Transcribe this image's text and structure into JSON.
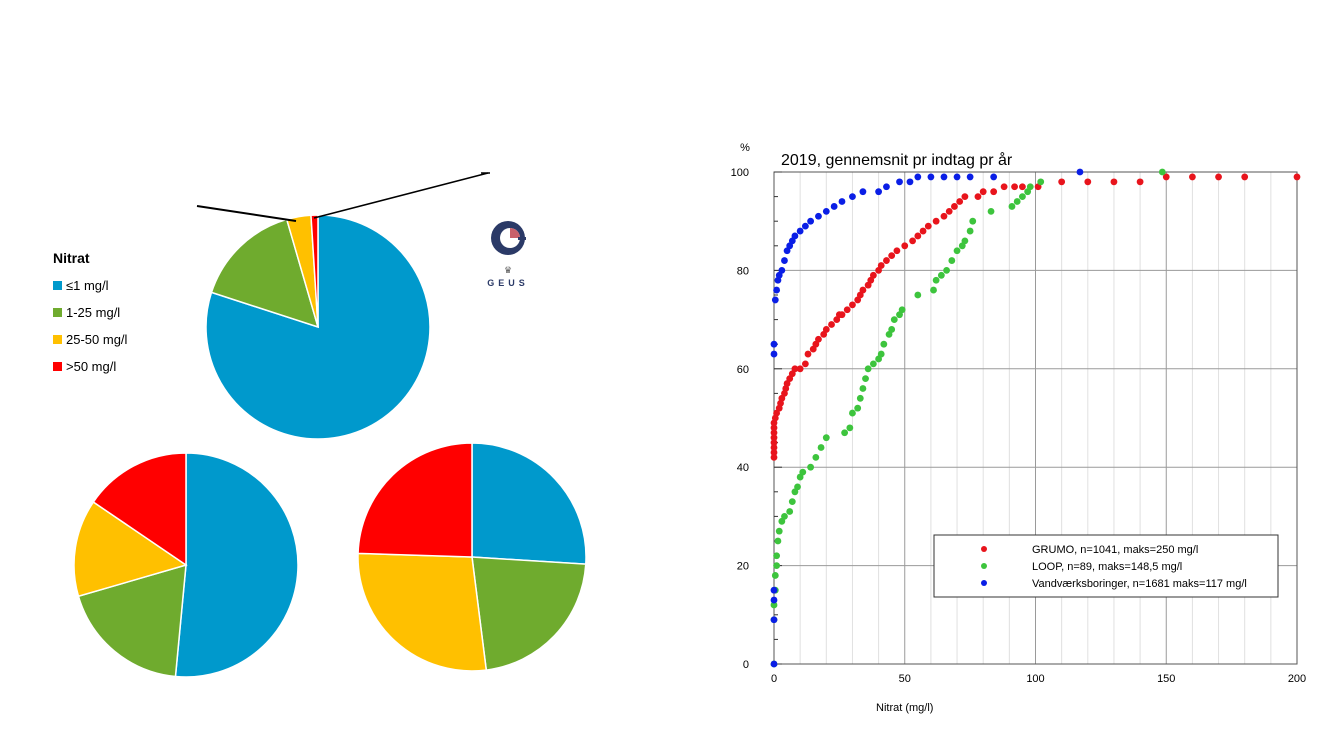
{
  "colors": {
    "le1": "#0099CC",
    "c1_25": "#6FAB2E",
    "c25_50": "#FFC000",
    "gt50": "#FF0000",
    "grumo": "#E8141C",
    "loop": "#3DC43D",
    "vand": "#0A1EE6"
  },
  "legend": {
    "title": "Nitrat",
    "items": [
      {
        "label": "≤1 mg/l",
        "color_key": "le1"
      },
      {
        "label": "1-25 mg/l",
        "color_key": "c1_25"
      },
      {
        "label": "25-50 mg/l",
        "color_key": "c25_50"
      },
      {
        "label": ">50 mg/l",
        "color_key": "gt50"
      }
    ]
  },
  "logo": {
    "text": "GEUS",
    "icon": "geus-logo-icon"
  },
  "chart_data": [
    {
      "type": "pie",
      "labels": [
        "≤1 mg/l",
        "1-25 mg/l",
        "25-50 mg/l",
        ">50 mg/l"
      ],
      "values": [
        80.0,
        15.5,
        3.5,
        1.0
      ],
      "colors": [
        "#0099CC",
        "#6FAB2E",
        "#FFC000",
        "#FF0000"
      ]
    },
    {
      "type": "pie",
      "labels": [
        "≤1 mg/l",
        "1-25 mg/l",
        "25-50 mg/l",
        ">50 mg/l"
      ],
      "values": [
        51.5,
        19.0,
        14.0,
        15.5
      ],
      "colors": [
        "#0099CC",
        "#6FAB2E",
        "#FFC000",
        "#FF0000"
      ]
    },
    {
      "type": "pie",
      "labels": [
        "≤1 mg/l",
        "1-25 mg/l",
        "25-50 mg/l",
        ">50 mg/l"
      ],
      "values": [
        26.0,
        22.0,
        27.5,
        24.5
      ],
      "colors": [
        "#0099CC",
        "#6FAB2E",
        "#FFC000",
        "#FF0000"
      ]
    },
    {
      "type": "scatter",
      "title": "2019, gennemsnit pr indtag pr år",
      "xlabel": "Nitrat (mg/l)",
      "ylabel": "%",
      "xlim": [
        0,
        200
      ],
      "ylim": [
        0,
        100
      ],
      "xticks": [
        0,
        50,
        100,
        150,
        200
      ],
      "yticks": [
        0,
        20,
        40,
        60,
        80,
        100
      ],
      "grid": true,
      "legend_position": "bottom-right",
      "series": [
        {
          "name": "GRUMO, n=1041, maks=250 mg/l",
          "color_key": "grumo",
          "points": [
            [
              0,
              42
            ],
            [
              0,
              43
            ],
            [
              0,
              44
            ],
            [
              0,
              45
            ],
            [
              0,
              46
            ],
            [
              0,
              47
            ],
            [
              0,
              48
            ],
            [
              0,
              49
            ],
            [
              0.5,
              50
            ],
            [
              1,
              51
            ],
            [
              2,
              52
            ],
            [
              2.5,
              53
            ],
            [
              3,
              54
            ],
            [
              4,
              55
            ],
            [
              4.5,
              56
            ],
            [
              5,
              57
            ],
            [
              6,
              58
            ],
            [
              7,
              59
            ],
            [
              8,
              60
            ],
            [
              10,
              60
            ],
            [
              12,
              61
            ],
            [
              13,
              63
            ],
            [
              15,
              64
            ],
            [
              16,
              65
            ],
            [
              17,
              66
            ],
            [
              19,
              67
            ],
            [
              20,
              68
            ],
            [
              22,
              69
            ],
            [
              24,
              70
            ],
            [
              25,
              71
            ],
            [
              26,
              71
            ],
            [
              28,
              72
            ],
            [
              30,
              73
            ],
            [
              32,
              74
            ],
            [
              33,
              75
            ],
            [
              34,
              76
            ],
            [
              36,
              77
            ],
            [
              37,
              78
            ],
            [
              38,
              79
            ],
            [
              40,
              80
            ],
            [
              41,
              81
            ],
            [
              43,
              82
            ],
            [
              45,
              83
            ],
            [
              47,
              84
            ],
            [
              50,
              85
            ],
            [
              53,
              86
            ],
            [
              55,
              87
            ],
            [
              57,
              88
            ],
            [
              59,
              89
            ],
            [
              62,
              90
            ],
            [
              65,
              91
            ],
            [
              67,
              92
            ],
            [
              69,
              93
            ],
            [
              71,
              94
            ],
            [
              73,
              95
            ],
            [
              78,
              95
            ],
            [
              80,
              96
            ],
            [
              84,
              96
            ],
            [
              88,
              97
            ],
            [
              92,
              97
            ],
            [
              95,
              97
            ],
            [
              101,
              97
            ],
            [
              110,
              98
            ],
            [
              120,
              98
            ],
            [
              130,
              98
            ],
            [
              140,
              98
            ],
            [
              150,
              99
            ],
            [
              160,
              99
            ],
            [
              170,
              99
            ],
            [
              180,
              99
            ],
            [
              200,
              99
            ]
          ]
        },
        {
          "name": "LOOP, n=89, maks=148,5 mg/l",
          "color_key": "loop",
          "points": [
            [
              0,
              0
            ],
            [
              0,
              9
            ],
            [
              0,
              12
            ],
            [
              0.5,
              15
            ],
            [
              0.5,
              18
            ],
            [
              1,
              20
            ],
            [
              1,
              22
            ],
            [
              1.5,
              25
            ],
            [
              2,
              27
            ],
            [
              3,
              29
            ],
            [
              4,
              30
            ],
            [
              6,
              31
            ],
            [
              7,
              33
            ],
            [
              8,
              35
            ],
            [
              9,
              36
            ],
            [
              10,
              38
            ],
            [
              11,
              39
            ],
            [
              14,
              40
            ],
            [
              16,
              42
            ],
            [
              18,
              44
            ],
            [
              20,
              46
            ],
            [
              27,
              47
            ],
            [
              29,
              48
            ],
            [
              30,
              51
            ],
            [
              32,
              52
            ],
            [
              33,
              54
            ],
            [
              34,
              56
            ],
            [
              35,
              58
            ],
            [
              36,
              60
            ],
            [
              38,
              61
            ],
            [
              40,
              62
            ],
            [
              41,
              63
            ],
            [
              42,
              65
            ],
            [
              44,
              67
            ],
            [
              45,
              68
            ],
            [
              46,
              70
            ],
            [
              48,
              71
            ],
            [
              49,
              72
            ],
            [
              55,
              75
            ],
            [
              61,
              76
            ],
            [
              62,
              78
            ],
            [
              64,
              79
            ],
            [
              66,
              80
            ],
            [
              68,
              82
            ],
            [
              70,
              84
            ],
            [
              72,
              85
            ],
            [
              73,
              86
            ],
            [
              75,
              88
            ],
            [
              76,
              90
            ],
            [
              83,
              92
            ],
            [
              91,
              93
            ],
            [
              93,
              94
            ],
            [
              95,
              95
            ],
            [
              97,
              96
            ],
            [
              98,
              97
            ],
            [
              102,
              98
            ],
            [
              148.5,
              100
            ]
          ]
        },
        {
          "name": "Vandværksboringer, n=1681 maks=117 mg/l",
          "color_key": "vand",
          "points": [
            [
              0,
              0
            ],
            [
              0,
              9
            ],
            [
              0,
              13
            ],
            [
              0,
              15
            ],
            [
              0,
              63
            ],
            [
              0,
              65
            ],
            [
              0.5,
              74
            ],
            [
              1,
              76
            ],
            [
              1.5,
              78
            ],
            [
              2,
              79
            ],
            [
              3,
              80
            ],
            [
              4,
              82
            ],
            [
              5,
              84
            ],
            [
              6,
              85
            ],
            [
              7,
              86
            ],
            [
              8,
              87
            ],
            [
              10,
              88
            ],
            [
              12,
              89
            ],
            [
              14,
              90
            ],
            [
              17,
              91
            ],
            [
              20,
              92
            ],
            [
              23,
              93
            ],
            [
              26,
              94
            ],
            [
              30,
              95
            ],
            [
              34,
              96
            ],
            [
              40,
              96
            ],
            [
              43,
              97
            ],
            [
              48,
              98
            ],
            [
              52,
              98
            ],
            [
              55,
              99
            ],
            [
              60,
              99
            ],
            [
              65,
              99
            ],
            [
              70,
              99
            ],
            [
              75,
              99
            ],
            [
              84,
              99
            ],
            [
              117,
              100
            ]
          ]
        }
      ]
    }
  ]
}
